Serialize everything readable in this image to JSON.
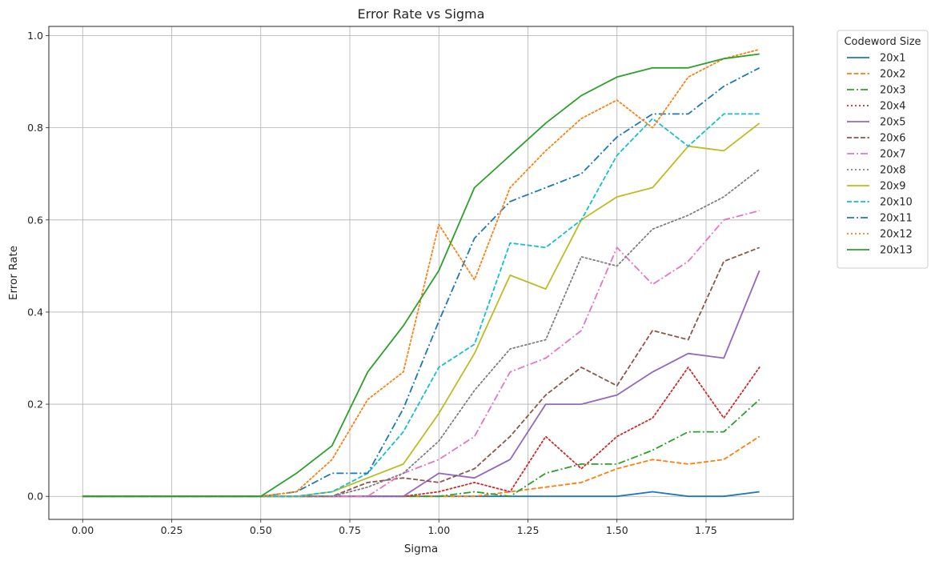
{
  "chart_data": {
    "type": "line",
    "title": "Error Rate vs Sigma",
    "xlabel": "Sigma",
    "ylabel": "Error Rate",
    "xlim": [
      -0.095,
      1.995
    ],
    "ylim": [
      -0.05,
      1.02
    ],
    "xticks": [
      0.0,
      0.25,
      0.5,
      0.75,
      1.0,
      1.25,
      1.5,
      1.75
    ],
    "xtick_labels": [
      "0.00",
      "0.25",
      "0.50",
      "0.75",
      "1.00",
      "1.25",
      "1.50",
      "1.75"
    ],
    "yticks": [
      0.0,
      0.2,
      0.4,
      0.6,
      0.8,
      1.0
    ],
    "ytick_labels": [
      "0.0",
      "0.2",
      "0.4",
      "0.6",
      "0.8",
      "1.0"
    ],
    "grid": true,
    "legend_title": "Codeword Size",
    "legend_position": "outside-right-top",
    "x": [
      0.0,
      0.1,
      0.2,
      0.3,
      0.4,
      0.5,
      0.6,
      0.7,
      0.8,
      0.9,
      1.0,
      1.1,
      1.2,
      1.3,
      1.4,
      1.5,
      1.6,
      1.7,
      1.8,
      1.9
    ],
    "series": [
      {
        "name": "20x1",
        "color": "#1f77b4",
        "dash": "solid",
        "values": [
          0,
          0,
          0,
          0,
          0,
          0,
          0,
          0,
          0,
          0,
          0,
          0,
          0,
          0,
          0,
          0,
          0.01,
          0,
          0,
          0.01
        ]
      },
      {
        "name": "20x2",
        "color": "#ff7f0e",
        "dash": "dashed",
        "values": [
          0,
          0,
          0,
          0,
          0,
          0,
          0,
          0,
          0,
          0,
          0,
          0,
          0.01,
          0.02,
          0.03,
          0.06,
          0.08,
          0.07,
          0.08,
          0.13
        ]
      },
      {
        "name": "20x3",
        "color": "#2ca02c",
        "dash": "dashdot",
        "values": [
          0,
          0,
          0,
          0,
          0,
          0,
          0,
          0,
          0,
          0,
          0,
          0.01,
          0,
          0.05,
          0.07,
          0.07,
          0.1,
          0.14,
          0.14,
          0.21
        ]
      },
      {
        "name": "20x4",
        "color": "#d62728",
        "dash": "dotted",
        "values": [
          0,
          0,
          0,
          0,
          0,
          0,
          0,
          0,
          0,
          0,
          0.01,
          0.03,
          0.01,
          0.13,
          0.06,
          0.13,
          0.17,
          0.28,
          0.17,
          0.28
        ]
      },
      {
        "name": "20x5",
        "color": "#9467bd",
        "dash": "solid",
        "values": [
          0,
          0,
          0,
          0,
          0,
          0,
          0,
          0,
          0,
          0,
          0.05,
          0.04,
          0.08,
          0.2,
          0.2,
          0.22,
          0.27,
          0.31,
          0.3,
          0.49
        ]
      },
      {
        "name": "20x6",
        "color": "#8c564b",
        "dash": "dashed",
        "values": [
          0,
          0,
          0,
          0,
          0,
          0,
          0,
          0,
          0.03,
          0.04,
          0.03,
          0.06,
          0.13,
          0.22,
          0.28,
          0.24,
          0.36,
          0.34,
          0.51,
          0.54
        ]
      },
      {
        "name": "20x7",
        "color": "#e377c2",
        "dash": "dashdot",
        "values": [
          0,
          0,
          0,
          0,
          0,
          0,
          0,
          0,
          0,
          0.05,
          0.08,
          0.13,
          0.27,
          0.3,
          0.36,
          0.54,
          0.46,
          0.51,
          0.6,
          0.62
        ]
      },
      {
        "name": "20x8",
        "color": "#7f7f7f",
        "dash": "dotted",
        "values": [
          0,
          0,
          0,
          0,
          0,
          0,
          0,
          0,
          0.02,
          0.05,
          0.12,
          0.23,
          0.32,
          0.34,
          0.52,
          0.5,
          0.58,
          0.61,
          0.65,
          0.71
        ]
      },
      {
        "name": "20x9",
        "color": "#bcbd22",
        "dash": "solid",
        "values": [
          0,
          0,
          0,
          0,
          0,
          0,
          0,
          0.01,
          0.04,
          0.07,
          0.18,
          0.31,
          0.48,
          0.45,
          0.6,
          0.65,
          0.67,
          0.76,
          0.75,
          0.81
        ]
      },
      {
        "name": "20x10",
        "color": "#17becf",
        "dash": "dashed",
        "values": [
          0,
          0,
          0,
          0,
          0,
          0,
          0,
          0.01,
          0.05,
          0.14,
          0.28,
          0.33,
          0.55,
          0.54,
          0.6,
          0.74,
          0.82,
          0.76,
          0.83,
          0.83
        ]
      },
      {
        "name": "20x11",
        "color": "#1f77b4",
        "dash": "dashdot",
        "values": [
          0,
          0,
          0,
          0,
          0,
          0,
          0.01,
          0.05,
          0.05,
          0.19,
          0.38,
          0.56,
          0.64,
          0.67,
          0.7,
          0.78,
          0.83,
          0.83,
          0.89,
          0.93
        ]
      },
      {
        "name": "20x12",
        "color": "#ff7f0e",
        "dash": "dotted",
        "values": [
          0,
          0,
          0,
          0,
          0,
          0,
          0.01,
          0.08,
          0.21,
          0.27,
          0.59,
          0.47,
          0.67,
          0.75,
          0.82,
          0.86,
          0.8,
          0.91,
          0.95,
          0.97
        ]
      },
      {
        "name": "20x13",
        "color": "#2ca02c",
        "dash": "solid",
        "values": [
          0,
          0,
          0,
          0,
          0,
          0,
          0.05,
          0.11,
          0.27,
          0.37,
          0.49,
          0.67,
          0.74,
          0.81,
          0.87,
          0.91,
          0.93,
          0.93,
          0.95,
          0.96
        ]
      }
    ]
  }
}
